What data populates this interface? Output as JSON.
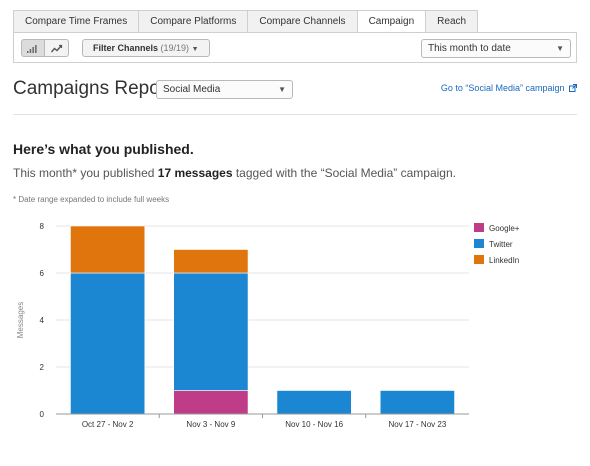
{
  "tabs": [
    {
      "label": "Compare Time Frames",
      "active": false
    },
    {
      "label": "Compare Platforms",
      "active": false
    },
    {
      "label": "Compare Channels",
      "active": false
    },
    {
      "label": "Campaign",
      "active": true
    },
    {
      "label": "Reach",
      "active": false
    }
  ],
  "toolbar": {
    "bar_toggle_icon": "bar-chart-icon",
    "line_toggle_icon": "line-chart-icon",
    "filter_label": "Filter Channels",
    "filter_count": "(19/19)",
    "date_range": "This month to date"
  },
  "report": {
    "title": "Campaigns Report",
    "campaign": "Social Media",
    "link": "Go to “Social Media” campaign"
  },
  "summary": {
    "headline": "Here’s what you published.",
    "prefix": "This month* you published",
    "count": "17 messages",
    "suffix": "tagged with the “Social Media” campaign.",
    "footnote": "* Date range expanded to include full weeks"
  },
  "colors": {
    "google": "#bf3d86",
    "twitter": "#1b86d2",
    "linkedin": "#e0750e",
    "link": "#1a6ac2"
  },
  "chart_data": {
    "type": "bar",
    "stacked": true,
    "categories": [
      "Oct 27 - Nov 2",
      "Nov 3 - Nov 9",
      "Nov 10 - Nov 16",
      "Nov 17 - Nov 23"
    ],
    "series": [
      {
        "name": "Google+",
        "color": "#bf3d86",
        "values": [
          0,
          1,
          0,
          0
        ]
      },
      {
        "name": "Twitter",
        "color": "#1b86d2",
        "values": [
          6,
          5,
          1,
          1
        ]
      },
      {
        "name": "LinkedIn",
        "color": "#e0750e",
        "values": [
          2,
          1,
          0,
          0
        ]
      }
    ],
    "xlabel": "",
    "ylabel": "Messages",
    "ylim": [
      0,
      8
    ],
    "yticks": [
      0,
      2,
      4,
      6,
      8
    ],
    "grid": true,
    "legend": "right"
  }
}
